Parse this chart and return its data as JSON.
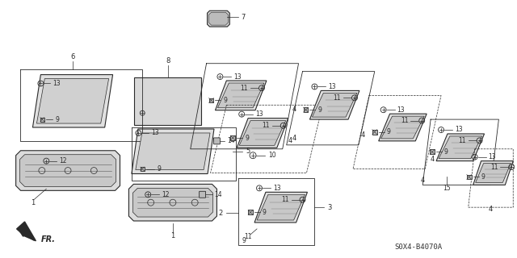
{
  "bg_color": "#ffffff",
  "diagram_code": "S0X4-B4070A",
  "line_color": "#2a2a2a",
  "label_color": "#111111",
  "fill_light": "#e8e8e8",
  "fill_medium": "#cccccc",
  "fill_dark": "#aaaaaa"
}
